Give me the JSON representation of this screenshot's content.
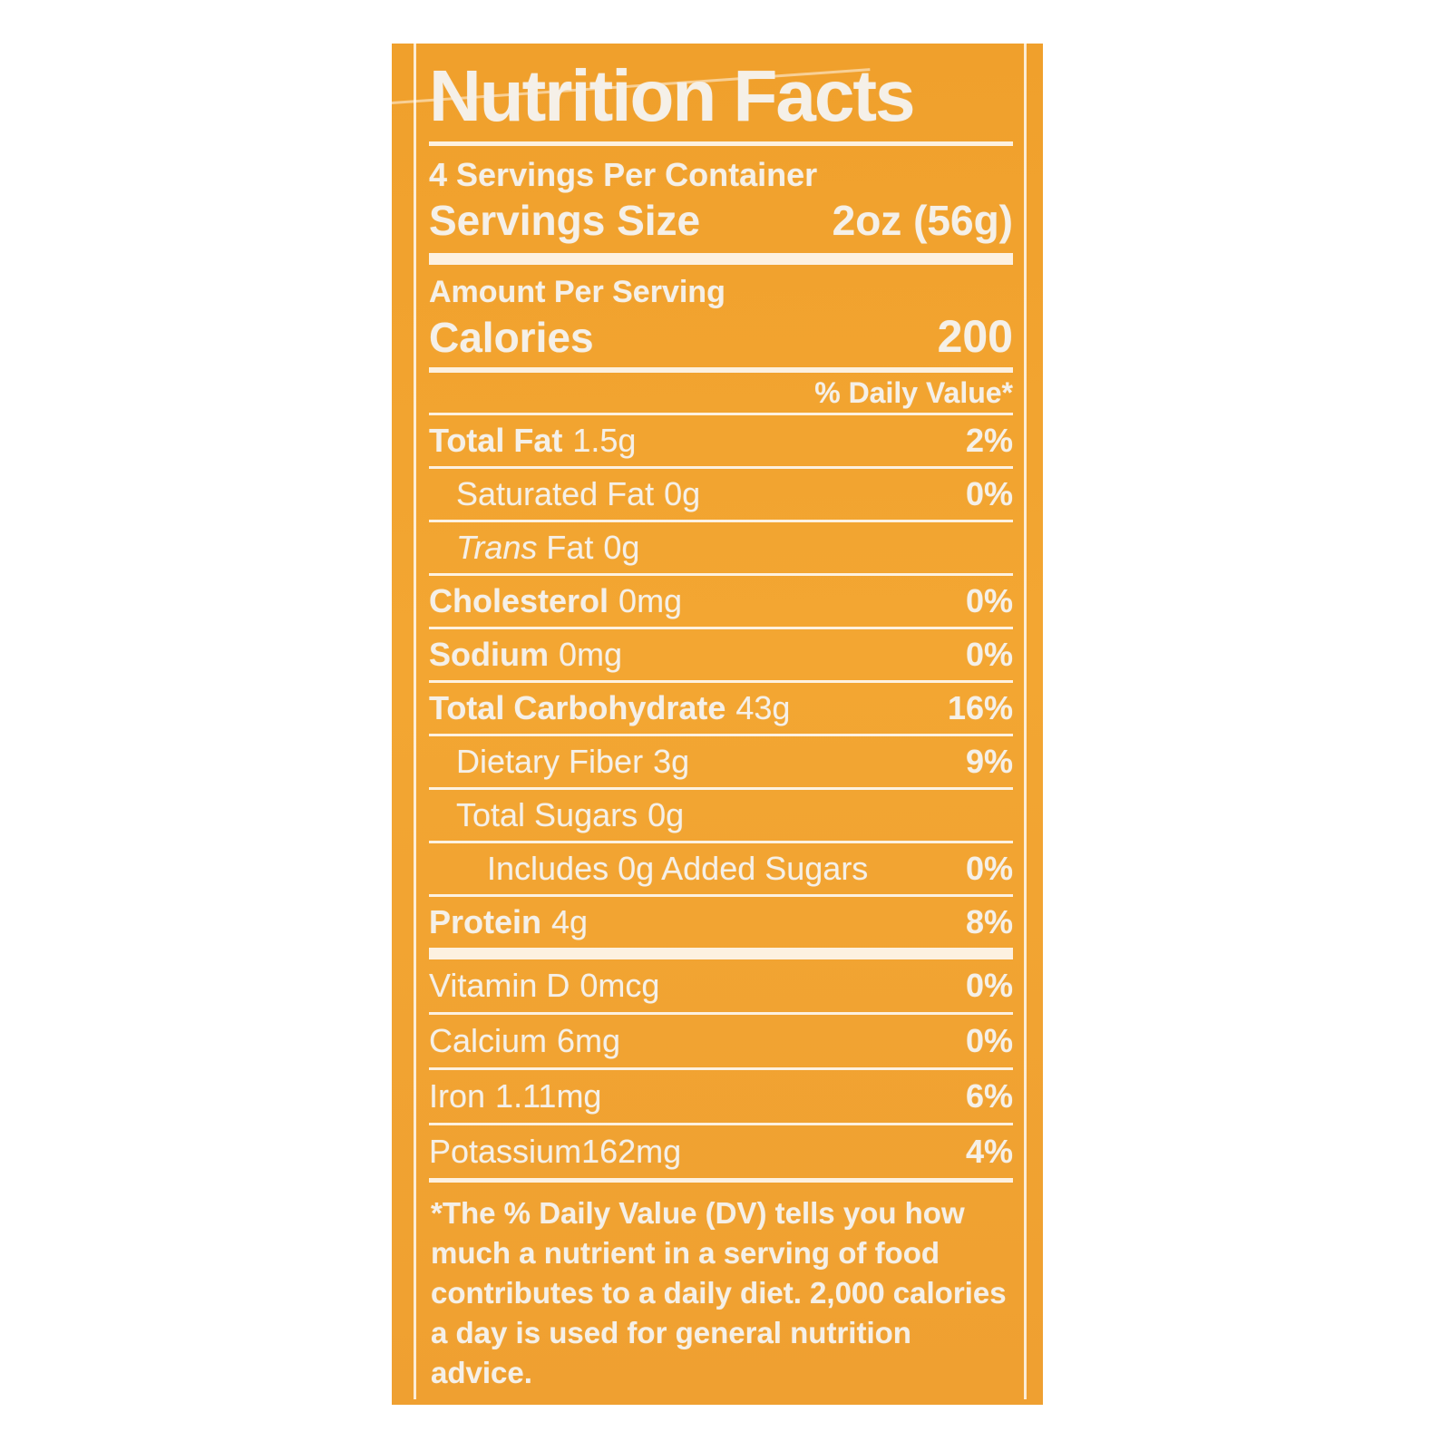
{
  "page": {
    "background": "#FFFFFF"
  },
  "label": {
    "colors": {
      "background": "#F2A230",
      "text": "#F5F0E8"
    },
    "title": "Nutrition Facts",
    "servings_per_container": "4 Servings Per Container",
    "serving_size": {
      "label": "Servings Size",
      "value": "2oz (56g)"
    },
    "amount_per_serving": "Amount Per Serving",
    "calories": {
      "label": "Calories",
      "value": "200"
    },
    "daily_value_header": "% Daily Value*",
    "nutrients": [
      {
        "name": "Total Fat",
        "amount": "1.5g",
        "dv": "2%"
      },
      {
        "name": "Saturated Fat",
        "amount": "0g",
        "dv": "0%"
      },
      {
        "name_italic": "Trans",
        "name": "Fat",
        "amount": "0g",
        "dv": ""
      },
      {
        "name": "Cholesterol",
        "amount": "0mg",
        "dv": "0%"
      },
      {
        "name": "Sodium",
        "amount": "0mg",
        "dv": "0%"
      },
      {
        "name": "Total Carbohydrate",
        "amount": "43g",
        "dv": "16%"
      },
      {
        "name": "Dietary Fiber",
        "amount": "3g",
        "dv": "9%"
      },
      {
        "name": "Total Sugars",
        "amount": "0g",
        "dv": ""
      },
      {
        "name": "Includes 0g Added Sugars",
        "amount": "",
        "dv": "0%"
      },
      {
        "name": "Protein",
        "amount": "4g",
        "dv": "8%"
      }
    ],
    "micronutrients": [
      {
        "name": "Vitamin D",
        "amount": "0mcg",
        "dv": "0%"
      },
      {
        "name": "Calcium",
        "amount": "6mg",
        "dv": "0%"
      },
      {
        "name": "Iron",
        "amount": "1.11mg",
        "dv": "6%"
      },
      {
        "name": "Potassium162mg",
        "amount": "",
        "dv": "4%"
      }
    ],
    "footnote": "*The % Daily Value (DV) tells you how much a nutrient in a serving of food contributes to a daily diet. 2,000 calories a day is used for general nutrition advice."
  }
}
